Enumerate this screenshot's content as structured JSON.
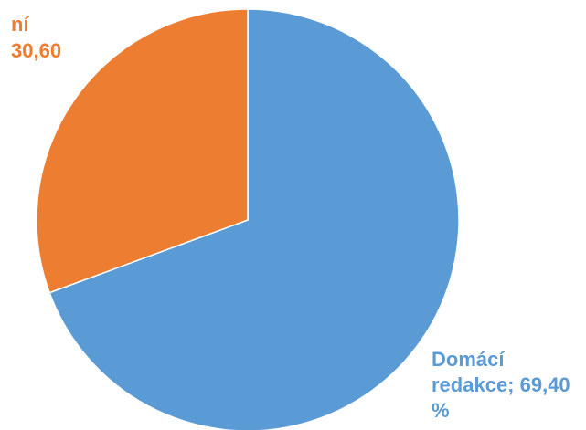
{
  "chart_data": {
    "type": "pie",
    "title": "",
    "legend": "none",
    "slices": [
      {
        "category": "Domácí redakce",
        "value": 69.4,
        "color": "#5b9bd5",
        "label_lines": [
          "Domácí",
          "redakce; 69,40",
          "%"
        ]
      },
      {
        "category": "",
        "value": 30.6,
        "color": "#ed7d31",
        "label_lines": [
          "ní",
          "30,60"
        ]
      }
    ]
  }
}
